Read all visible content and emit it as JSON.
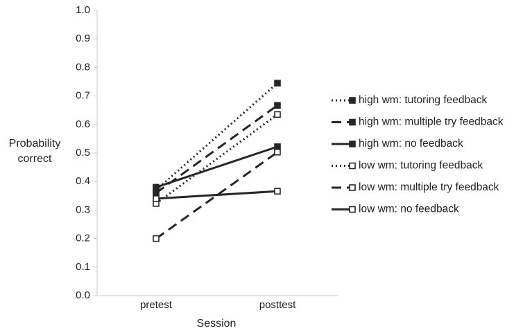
{
  "chart_data": {
    "type": "line",
    "x_label": "Session",
    "y_label": "Probability correct",
    "categories": [
      "pretest",
      "posttest"
    ],
    "ylim": [
      0,
      1
    ],
    "yticks": [
      {
        "value": 0,
        "label": "0.0"
      },
      0.1,
      0.2,
      0.3,
      0.4,
      0.5,
      0.6,
      0.7,
      0.8,
      0.9,
      {
        "value": 1,
        "label": "1.0"
      }
    ],
    "grid": false,
    "legend": "right",
    "series": [
      {
        "name": "high wm: tutoring feedback",
        "color": "#262626",
        "line_style": "dotted",
        "marker_fill": "filled",
        "values": [
          0.37,
          0.745
        ]
      },
      {
        "name": "high wm: multiple try feedback",
        "color": "#262626",
        "line_style": "dashed",
        "marker_fill": "filled",
        "values": [
          0.36,
          0.667
        ]
      },
      {
        "name": "high wm: no feedback",
        "color": "#262626",
        "line_style": "solid",
        "marker_fill": "filled",
        "values": [
          0.38,
          0.522
        ]
      },
      {
        "name": "low wm: tutoring feedback",
        "color": "#262626",
        "line_style": "dotted",
        "marker_fill": "hollow",
        "values": [
          0.323,
          0.635
        ]
      },
      {
        "name": "low wm: multiple try feedback",
        "color": "#262626",
        "line_style": "dashed",
        "marker_fill": "hollow",
        "values": [
          0.2,
          0.503
        ]
      },
      {
        "name": "low wm: no feedback",
        "color": "#262626",
        "line_style": "solid",
        "marker_fill": "hollow",
        "values": [
          0.34,
          0.366
        ]
      }
    ]
  }
}
